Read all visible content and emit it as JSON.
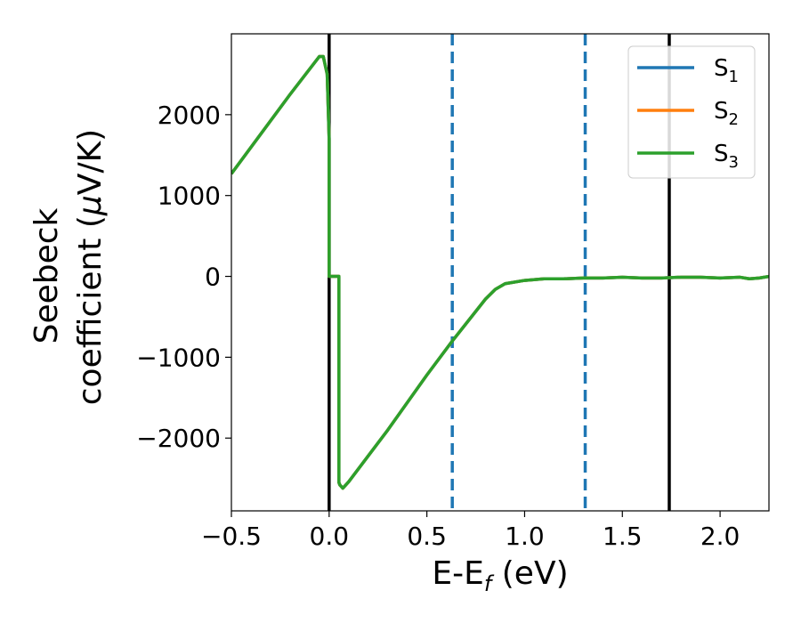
{
  "chart_data": {
    "type": "line",
    "title": "",
    "xlabel": {
      "main": "E-E",
      "sub": "f",
      "tail": " (eV)"
    },
    "ylabel": {
      "line1": "Seebeck",
      "line2_pre": "coefficient  (",
      "mu": "μ",
      "line2_post": "V/K)"
    },
    "xlim": [
      -0.5,
      2.25
    ],
    "ylim": [
      -2900,
      3000
    ],
    "xticks": [
      -0.5,
      0.0,
      0.5,
      1.0,
      1.5,
      2.0
    ],
    "xtick_labels": [
      "−0.5",
      "0.0",
      "0.5",
      "1.0",
      "1.5",
      "2.0"
    ],
    "yticks": [
      -2000,
      -1000,
      0,
      1000,
      2000
    ],
    "ytick_labels": [
      "−2000",
      "−1000",
      "0",
      "1000",
      "2000"
    ],
    "grid": false,
    "legend_position": "top-right",
    "vlines": [
      {
        "x": 0.0,
        "style": "solid",
        "color": "#000000"
      },
      {
        "x": 1.74,
        "style": "solid",
        "color": "#000000"
      },
      {
        "x": 0.63,
        "style": "dashed",
        "color": "#1f77b4"
      },
      {
        "x": 1.31,
        "style": "dashed",
        "color": "#1f77b4"
      }
    ],
    "series": [
      {
        "name": "S",
        "sub": "1",
        "color": "#1f77b4",
        "x": [
          -0.5,
          -0.2,
          -0.05,
          -0.03,
          -0.01,
          0.0,
          0.0,
          0.05,
          0.05,
          0.055,
          0.07,
          0.1,
          0.3,
          0.5,
          0.63,
          0.8,
          0.85,
          0.9,
          1.0,
          1.1,
          1.2,
          1.3,
          1.4,
          1.5,
          1.6,
          1.7,
          1.8,
          1.9,
          2.0,
          2.1,
          2.15,
          2.2,
          2.25
        ],
        "y": [
          1270,
          2250,
          2720,
          2720,
          2500,
          1700,
          0,
          0,
          -2550,
          -2580,
          -2620,
          -2540,
          -1900,
          -1220,
          -800,
          -280,
          -160,
          -90,
          -50,
          -30,
          -30,
          -20,
          -20,
          -10,
          -20,
          -20,
          -10,
          -10,
          -20,
          -10,
          -30,
          -20,
          0
        ]
      },
      {
        "name": "S",
        "sub": "2",
        "color": "#ff7f0e",
        "x": [
          -0.5,
          -0.2,
          -0.05,
          -0.03,
          -0.01,
          0.0,
          0.0,
          0.05,
          0.05,
          0.055,
          0.07,
          0.1,
          0.3,
          0.5,
          0.63,
          0.8,
          0.85,
          0.9,
          1.0,
          1.1,
          1.2,
          1.3,
          1.4,
          1.5,
          1.6,
          1.7,
          1.8,
          1.9,
          2.0,
          2.1,
          2.15,
          2.2,
          2.25
        ],
        "y": [
          1270,
          2250,
          2720,
          2720,
          2500,
          1700,
          0,
          0,
          -2550,
          -2580,
          -2620,
          -2540,
          -1900,
          -1220,
          -800,
          -280,
          -160,
          -90,
          -50,
          -30,
          -30,
          -20,
          -20,
          -10,
          -20,
          -20,
          -10,
          -10,
          -20,
          -10,
          -30,
          -20,
          0
        ]
      },
      {
        "name": "S",
        "sub": "3",
        "color": "#2ca02c",
        "x": [
          -0.5,
          -0.2,
          -0.05,
          -0.03,
          -0.01,
          0.0,
          0.0,
          0.05,
          0.05,
          0.055,
          0.07,
          0.1,
          0.3,
          0.5,
          0.63,
          0.8,
          0.85,
          0.9,
          1.0,
          1.1,
          1.2,
          1.3,
          1.4,
          1.5,
          1.6,
          1.7,
          1.8,
          1.9,
          2.0,
          2.1,
          2.15,
          2.2,
          2.25
        ],
        "y": [
          1270,
          2250,
          2720,
          2720,
          2500,
          1700,
          0,
          0,
          -2550,
          -2580,
          -2620,
          -2540,
          -1900,
          -1220,
          -800,
          -280,
          -160,
          -90,
          -50,
          -30,
          -30,
          -20,
          -20,
          -10,
          -20,
          -20,
          -10,
          -10,
          -20,
          -10,
          -30,
          -20,
          0
        ]
      }
    ]
  }
}
